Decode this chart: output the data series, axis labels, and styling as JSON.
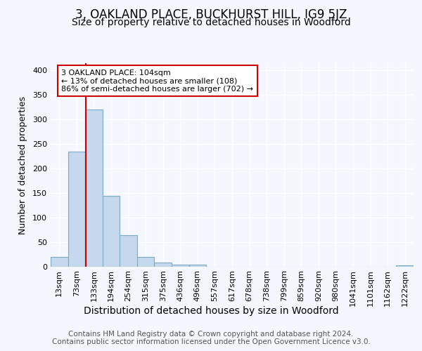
{
  "title": "3, OAKLAND PLACE, BUCKHURST HILL, IG9 5JZ",
  "subtitle": "Size of property relative to detached houses in Woodford",
  "xlabel": "Distribution of detached houses by size in Woodford",
  "ylabel": "Number of detached properties",
  "bin_labels": [
    "13sqm",
    "73sqm",
    "133sqm",
    "194sqm",
    "254sqm",
    "315sqm",
    "375sqm",
    "436sqm",
    "496sqm",
    "557sqm",
    "617sqm",
    "678sqm",
    "738sqm",
    "799sqm",
    "859sqm",
    "920sqm",
    "980sqm",
    "1041sqm",
    "1101sqm",
    "1162sqm",
    "1222sqm"
  ],
  "bar_heights": [
    20,
    235,
    320,
    145,
    65,
    20,
    8,
    5,
    5,
    0,
    0,
    0,
    0,
    0,
    0,
    0,
    0,
    0,
    0,
    0,
    3
  ],
  "bar_color": "#c5d8ed",
  "bar_edge_color": "#7aaac8",
  "annotation_text": "3 OAKLAND PLACE: 104sqm\n← 13% of detached houses are smaller (108)\n86% of semi-detached houses are larger (702) →",
  "annotation_box_color": "#ffffff",
  "annotation_box_edge_color": "#cc0000",
  "vline_color": "#cc0000",
  "vline_x": 1.52,
  "footer_text": "Contains HM Land Registry data © Crown copyright and database right 2024.\nContains public sector information licensed under the Open Government Licence v3.0.",
  "ylim": [
    0,
    415
  ],
  "background_color": "#f5f7ff",
  "plot_background_color": "#f5f7ff",
  "grid_color": "#ffffff",
  "title_fontsize": 12,
  "subtitle_fontsize": 10,
  "xlabel_fontsize": 10,
  "ylabel_fontsize": 9,
  "tick_fontsize": 8,
  "annot_fontsize": 8,
  "footer_fontsize": 7.5
}
